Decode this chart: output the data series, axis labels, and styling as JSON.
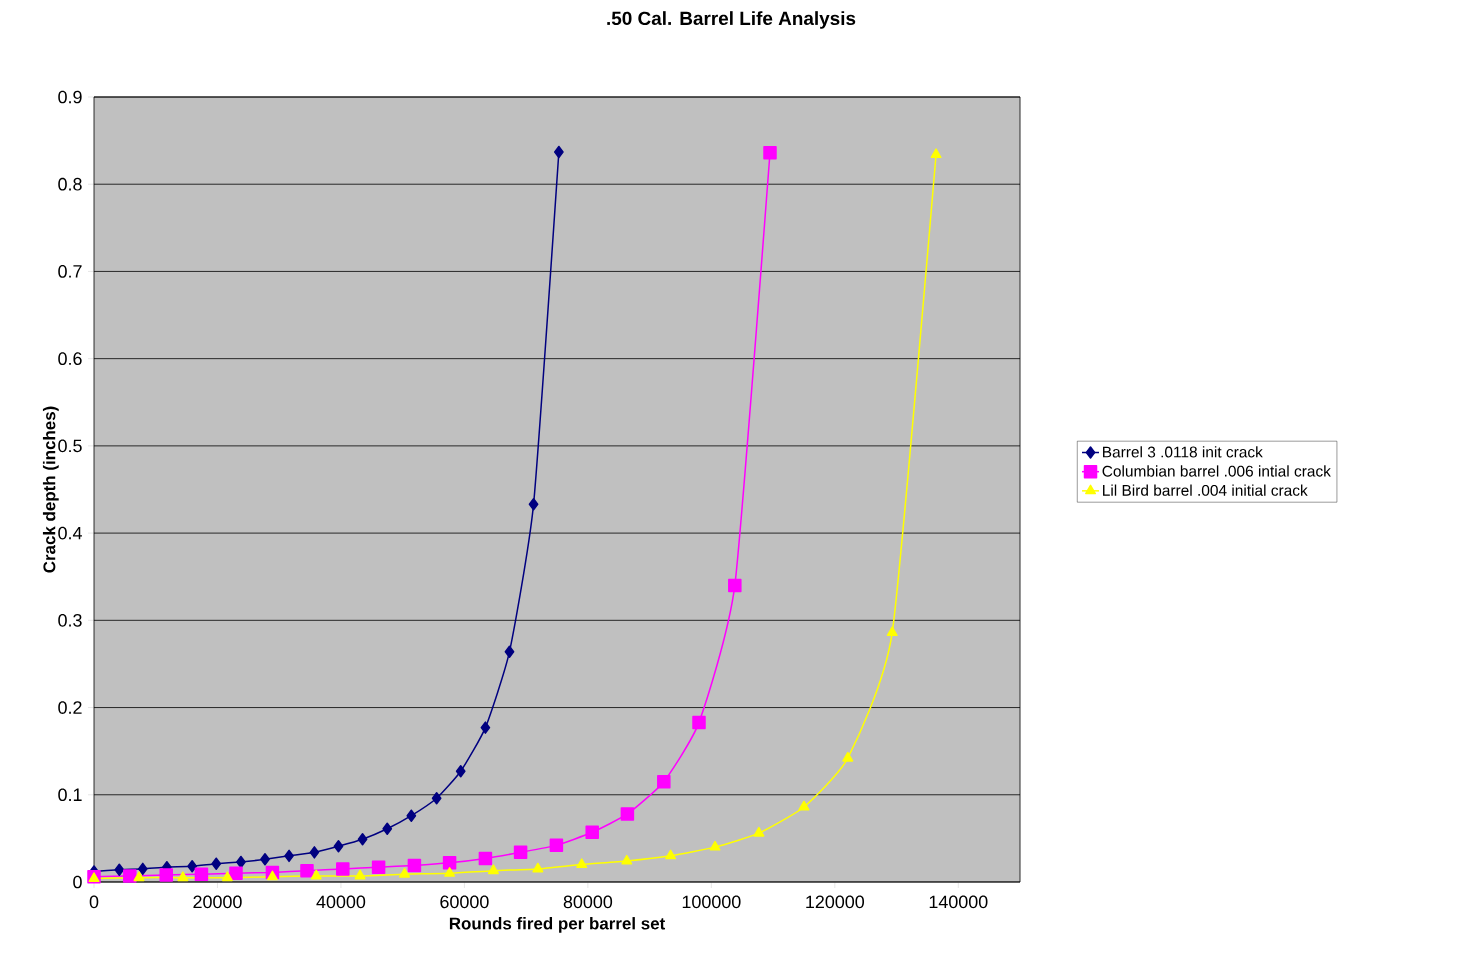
{
  "chart_data": {
    "type": "line",
    "title": ".50 Cal. Barrel Life Analysis",
    "xlabel": "Rounds fired per barrel set",
    "ylabel": "Crack depth (inches)",
    "xlim": [
      0,
      150000
    ],
    "xticks": [
      0,
      20000,
      40000,
      60000,
      80000,
      100000,
      120000,
      140000
    ],
    "ylim": [
      0,
      0.9
    ],
    "yticks": [
      0,
      0.1,
      0.2,
      0.3,
      0.4,
      0.5,
      0.6,
      0.7,
      0.8,
      0.9
    ],
    "grid": "y",
    "legend": "right",
    "line_style": "solid",
    "series": [
      {
        "name": "Barrel 3 .0118 init crack",
        "color": "#000080",
        "marker": "diamond",
        "x": [
          0,
          4100,
          7900,
          11800,
          15900,
          19800,
          23800,
          27700,
          31600,
          35700,
          39600,
          43500,
          47500,
          51400,
          55500,
          59400,
          63400,
          67300,
          71200,
          75300
        ],
        "values": [
          0.012,
          0.014,
          0.015,
          0.017,
          0.018,
          0.021,
          0.023,
          0.026,
          0.03,
          0.034,
          0.041,
          0.049,
          0.061,
          0.076,
          0.096,
          0.127,
          0.177,
          0.264,
          0.433,
          0.837
        ]
      },
      {
        "name": "Columbian barrel .006 intial crack",
        "color": "#ff00ff",
        "marker": "square",
        "x": [
          0,
          5800,
          11700,
          17400,
          23000,
          28900,
          34500,
          40300,
          46100,
          51900,
          57600,
          63400,
          69100,
          74900,
          80700,
          86400,
          92300,
          98000,
          103800,
          109500
        ],
        "values": [
          0.006,
          0.007,
          0.008,
          0.009,
          0.01,
          0.011,
          0.013,
          0.015,
          0.017,
          0.019,
          0.022,
          0.027,
          0.034,
          0.042,
          0.057,
          0.078,
          0.115,
          0.183,
          0.34,
          0.836
        ]
      },
      {
        "name": "Lil Bird barrel .004 initial crack",
        "color": "#ffff00",
        "marker": "triangle",
        "x": [
          0,
          7300,
          14400,
          21600,
          28900,
          36000,
          43100,
          50300,
          57600,
          64700,
          71900,
          79000,
          86300,
          93400,
          100600,
          107700,
          115000,
          122100,
          129300,
          136400
        ],
        "values": [
          0.004,
          0.005,
          0.005,
          0.005,
          0.006,
          0.007,
          0.007,
          0.009,
          0.01,
          0.013,
          0.015,
          0.02,
          0.024,
          0.03,
          0.04,
          0.056,
          0.086,
          0.142,
          0.286,
          0.834
        ]
      }
    ]
  }
}
